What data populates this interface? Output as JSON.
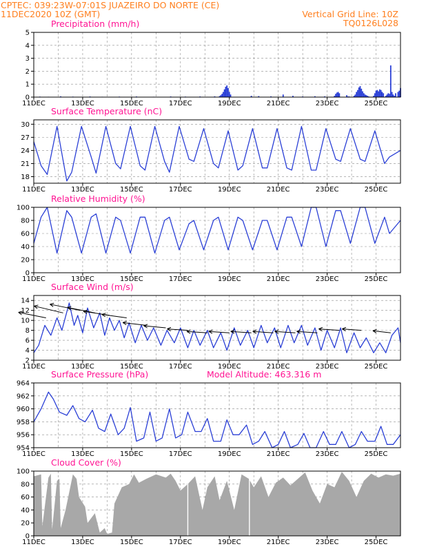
{
  "header": {
    "line1": "CPTEC:   039:23W-07:01S   JUAZEIRO DO NORTE (CE)",
    "line2": "11DEC2020 10Z (GMT)",
    "grid_note": "Vertical Grid Line: 10Z",
    "code": "TQ0126L028"
  },
  "colors": {
    "header": "#ff7f1e",
    "panel_title": "#ff1493",
    "series": "#2a3fd6",
    "cloud": "#a8a8a8",
    "grid": "#8c8c8c"
  },
  "x_axis": {
    "labels": [
      "11DEC",
      "13DEC",
      "15DEC",
      "17DEC",
      "19DEC",
      "21DEC",
      "23DEC",
      "25DEC"
    ],
    "range_days": [
      0,
      15
    ]
  },
  "chart_data": [
    {
      "type": "bar",
      "title": "Precipitation (mm/h)",
      "ylim": [
        0,
        5
      ],
      "yticks": [
        0,
        1,
        2,
        3,
        4,
        5
      ],
      "x_day": [
        0.25,
        0.6,
        1.1,
        1.6,
        2.3,
        2.8,
        3.5,
        4.2,
        4.9,
        5.6,
        6.2,
        6.8,
        7.4,
        7.6,
        7.65,
        7.7,
        7.75,
        7.8,
        7.85,
        7.9,
        7.95,
        8.0,
        8.05,
        8.9,
        9.2,
        9.7,
        10.2,
        10.6,
        11.0,
        11.5,
        11.9,
        12.3,
        12.35,
        12.4,
        12.45,
        12.5,
        12.8,
        12.85,
        12.9,
        13.1,
        13.15,
        13.2,
        13.25,
        13.3,
        13.35,
        13.4,
        13.45,
        13.5,
        13.55,
        13.6,
        13.65,
        13.7,
        13.9,
        13.95,
        14.0,
        14.05,
        14.1,
        14.15,
        14.2,
        14.25,
        14.3,
        14.4,
        14.45,
        14.5,
        14.55,
        14.6,
        14.65,
        14.7,
        14.75,
        14.8,
        14.9,
        14.95,
        15.0
      ],
      "values": [
        0.04,
        0.03,
        0.06,
        0.04,
        0.05,
        0.03,
        0.04,
        0.05,
        0.03,
        0.05,
        0.04,
        0.05,
        0.06,
        0.08,
        0.15,
        0.25,
        0.4,
        0.6,
        0.8,
        0.9,
        0.7,
        0.4,
        0.2,
        0.1,
        0.08,
        0.06,
        0.2,
        0.1,
        0.05,
        0.07,
        0.06,
        0.1,
        0.25,
        0.35,
        0.4,
        0.3,
        0.15,
        0.05,
        0.05,
        0.1,
        0.2,
        0.4,
        0.55,
        0.75,
        0.85,
        0.65,
        0.45,
        0.3,
        0.2,
        0.15,
        0.1,
        0.05,
        0.1,
        0.3,
        0.5,
        0.55,
        0.45,
        0.6,
        0.55,
        0.4,
        0.3,
        0.1,
        0.2,
        0.3,
        0.25,
        2.45,
        0.4,
        0.2,
        0.1,
        0.3,
        0.4,
        0.5,
        0.7
      ]
    },
    {
      "type": "line",
      "title": "Surface Temperature (nC)",
      "ylim": [
        16.5,
        31
      ],
      "yticks": [
        18,
        21,
        24,
        27,
        30
      ],
      "x_day": [
        0,
        0.3,
        0.55,
        0.95,
        1.35,
        1.55,
        1.95,
        2.35,
        2.55,
        2.95,
        3.35,
        3.55,
        3.95,
        4.35,
        4.55,
        4.95,
        5.35,
        5.55,
        5.95,
        6.35,
        6.55,
        6.95,
        7.35,
        7.55,
        7.95,
        8.35,
        8.55,
        8.95,
        9.35,
        9.55,
        9.95,
        10.35,
        10.55,
        10.95,
        11.35,
        11.55,
        11.95,
        12.35,
        12.55,
        12.95,
        13.35,
        13.55,
        13.95,
        14.35,
        14.55,
        15
      ],
      "values": [
        26,
        20.5,
        18.5,
        29.5,
        17,
        19,
        29.5,
        22.5,
        18.8,
        29.5,
        21,
        19.8,
        29.5,
        20.5,
        19.5,
        29.5,
        21.5,
        19,
        29.5,
        22,
        21.5,
        29,
        21,
        20,
        28.5,
        19.5,
        20.5,
        29,
        20,
        20,
        29,
        20,
        19.5,
        29.5,
        19.5,
        19.5,
        29,
        22,
        21.5,
        29,
        22,
        21.5,
        28.5,
        21,
        22.5,
        24
      ]
    },
    {
      "type": "line",
      "title": "Relative Humidity (%)",
      "ylim": [
        0,
        100
      ],
      "yticks": [
        0,
        20,
        40,
        60,
        80,
        100
      ],
      "x_day": [
        0,
        0.3,
        0.55,
        0.95,
        1.35,
        1.55,
        1.95,
        2.35,
        2.55,
        2.95,
        3.35,
        3.55,
        3.95,
        4.35,
        4.55,
        4.95,
        5.35,
        5.55,
        5.95,
        6.35,
        6.55,
        6.95,
        7.35,
        7.55,
        7.95,
        8.35,
        8.55,
        8.95,
        9.35,
        9.55,
        9.95,
        10.35,
        10.55,
        10.95,
        11.35,
        11.55,
        11.95,
        12.35,
        12.55,
        12.95,
        13.35,
        13.55,
        13.95,
        14.35,
        14.55,
        15
      ],
      "values": [
        45,
        85,
        100,
        30,
        95,
        85,
        30,
        85,
        90,
        30,
        85,
        80,
        30,
        85,
        85,
        30,
        80,
        85,
        35,
        75,
        80,
        35,
        80,
        85,
        35,
        85,
        80,
        35,
        80,
        80,
        35,
        85,
        85,
        40,
        100,
        100,
        40,
        95,
        95,
        45,
        100,
        100,
        45,
        85,
        60,
        80
      ]
    },
    {
      "type": "line",
      "title": "Surface Wind (m/s)",
      "ylim": [
        2,
        15
      ],
      "yticks": [
        2,
        4,
        6,
        8,
        10,
        12,
        14
      ],
      "x_day": [
        0,
        0.2,
        0.45,
        0.7,
        0.95,
        1.15,
        1.45,
        1.65,
        1.8,
        2.0,
        2.2,
        2.45,
        2.7,
        2.9,
        3.1,
        3.3,
        3.5,
        3.7,
        3.9,
        4.15,
        4.4,
        4.65,
        4.9,
        5.2,
        5.45,
        5.75,
        6.0,
        6.3,
        6.55,
        6.8,
        7.1,
        7.35,
        7.65,
        7.9,
        8.2,
        8.45,
        8.75,
        9.0,
        9.3,
        9.55,
        9.85,
        10.1,
        10.4,
        10.65,
        10.95,
        11.2,
        11.5,
        11.75,
        12.0,
        12.3,
        12.55,
        12.8,
        13.1,
        13.35,
        13.6,
        13.9,
        14.15,
        14.4,
        14.65,
        14.9,
        15
      ],
      "values": [
        3.5,
        5,
        9,
        7,
        10.5,
        8,
        13.5,
        9,
        11,
        7.5,
        12.5,
        8.5,
        11.5,
        7,
        10.5,
        8,
        10,
        6.5,
        9.5,
        5.5,
        9,
        6,
        8.5,
        5,
        8,
        5.5,
        8.5,
        4.5,
        8,
        5,
        8,
        4.5,
        7.5,
        4,
        8.5,
        5,
        8,
        4.5,
        9,
        5.5,
        8.5,
        4.5,
        9,
        5.5,
        9,
        5,
        8.5,
        4,
        8,
        4.5,
        8.5,
        3.5,
        7.5,
        4.5,
        6.5,
        3.5,
        5.5,
        3.5,
        7,
        8.5,
        5.5
      ],
      "arrows_day": [
        0.5,
        1.2,
        1.9,
        2.5,
        3.1,
        3.8,
        4.6,
        5.4,
        6.3,
        7.1,
        8.0,
        8.9,
        9.8,
        10.7,
        11.6,
        12.5,
        13.4,
        14.6
      ],
      "arrows_speed": [
        10.5,
        11.5,
        12,
        11.5,
        11,
        10.5,
        9,
        8.5,
        8,
        7.5,
        7.5,
        7.5,
        7.5,
        7.5,
        7.5,
        8,
        8,
        7.5
      ],
      "arrows_dx": [
        -40,
        -42,
        -44,
        -40,
        -38,
        -36,
        -34,
        -32,
        -30,
        -30,
        -30,
        -30,
        -30,
        -30,
        -30,
        -30,
        -28,
        -26
      ],
      "arrows_dy": [
        -8,
        -10,
        -9,
        -8,
        -6,
        -5,
        -4,
        -3,
        -2,
        -2,
        -2,
        -2,
        -2,
        -2,
        -2,
        -2,
        -2,
        -3
      ]
    },
    {
      "type": "line",
      "title": "Surface Pressure (hPa)",
      "annotation": "Model Altitude: 463.316 m",
      "ylim": [
        954,
        964
      ],
      "yticks": [
        954,
        956,
        958,
        960,
        962,
        964
      ],
      "x_day": [
        0,
        0.3,
        0.6,
        0.8,
        1.05,
        1.35,
        1.6,
        1.85,
        2.1,
        2.4,
        2.65,
        2.9,
        3.15,
        3.45,
        3.7,
        3.95,
        4.2,
        4.5,
        4.75,
        5.0,
        5.25,
        5.55,
        5.8,
        6.05,
        6.3,
        6.6,
        6.85,
        7.1,
        7.35,
        7.65,
        7.9,
        8.15,
        8.4,
        8.7,
        8.95,
        9.2,
        9.45,
        9.75,
        10.0,
        10.25,
        10.5,
        10.8,
        11.05,
        11.3,
        11.55,
        11.85,
        12.1,
        12.35,
        12.6,
        12.9,
        13.15,
        13.4,
        13.65,
        13.95,
        14.2,
        14.45,
        14.7,
        15
      ],
      "values": [
        958,
        960,
        962.6,
        961.5,
        959.5,
        959,
        960.5,
        958.5,
        958,
        959.8,
        957,
        956.5,
        959.2,
        956,
        957,
        960.2,
        955,
        955.5,
        959.5,
        955,
        955.5,
        960,
        955.5,
        956,
        959.5,
        956.5,
        956.5,
        958.5,
        955,
        955,
        958.3,
        956,
        956,
        957.5,
        954.5,
        955,
        956.5,
        954,
        954.5,
        956.5,
        954,
        954.5,
        956.2,
        954,
        954,
        956.5,
        954.5,
        954.5,
        956.5,
        954,
        954.5,
        956.5,
        955,
        955,
        957.3,
        954.5,
        954.5,
        956
      ]
    },
    {
      "type": "area",
      "title": "Cloud Cover (%)",
      "ylim": [
        0,
        100
      ],
      "yticks": [
        0,
        20,
        40,
        60,
        80,
        100
      ],
      "x_day": [
        0,
        0.3,
        0.35,
        0.6,
        0.7,
        0.75,
        0.95,
        1.05,
        1.1,
        1.3,
        1.6,
        1.75,
        1.85,
        2.1,
        2.2,
        2.5,
        2.7,
        2.9,
        3.0,
        3.2,
        3.3,
        3.6,
        3.9,
        4.1,
        4.3,
        4.6,
        5.0,
        5.4,
        5.6,
        5.8,
        6.0,
        6.3,
        6.6,
        6.9,
        7.1,
        7.4,
        7.6,
        7.9,
        8.2,
        8.5,
        8.8,
        9.0,
        9.3,
        9.6,
        9.9,
        10.2,
        10.5,
        10.8,
        11.1,
        11.4,
        11.7,
        12.0,
        12.3,
        12.6,
        12.9,
        13.2,
        13.5,
        13.8,
        14.1,
        14.4,
        14.7,
        15
      ],
      "values": [
        92,
        95,
        15,
        90,
        96,
        10,
        85,
        88,
        12,
        40,
        95,
        88,
        60,
        45,
        20,
        35,
        5,
        12,
        3,
        5,
        50,
        75,
        80,
        95,
        82,
        88,
        95,
        90,
        96,
        85,
        70,
        80,
        92,
        40,
        75,
        92,
        55,
        85,
        40,
        95,
        88,
        75,
        92,
        60,
        82,
        90,
        78,
        88,
        98,
        70,
        50,
        80,
        75,
        99,
        85,
        60,
        85,
        96,
        90,
        95,
        93,
        96
      ]
    }
  ]
}
